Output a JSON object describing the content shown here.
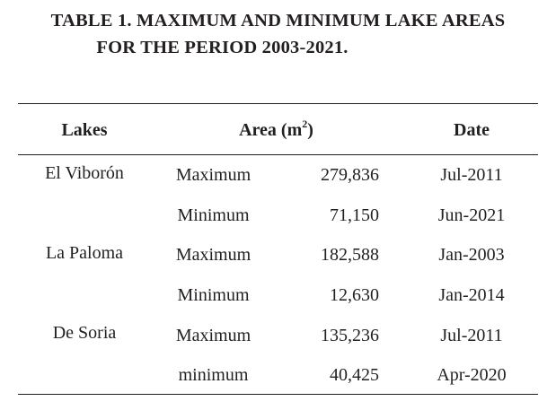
{
  "table": {
    "title_line1": "TABLE 1. MAXIMUM AND MINIMUM LAKE AREAS",
    "title_line2": "FOR THE PERIOD 2003-2021.",
    "header": {
      "lakes": "Lakes",
      "area": "Area (m",
      "area_sup": "2",
      "area_close": ")",
      "date": "Date"
    },
    "lakes": [
      "El Viborón",
      "La Paloma",
      "De Soria"
    ],
    "rows": [
      {
        "kind": "Maximum",
        "area": "279,836",
        "date": "Jul-2011"
      },
      {
        "kind": "Minimum",
        "area": "71,150",
        "date": "Jun-2021"
      },
      {
        "kind": "Maximum",
        "area": "182,588",
        "date": "Jan-2003"
      },
      {
        "kind": "Minimum",
        "area": "12,630",
        "date": "Jan-2014"
      },
      {
        "kind": "Maximum",
        "area": "135,236",
        "date": "Jul-2011"
      },
      {
        "kind": "minimum",
        "area": "40,425",
        "date": "Apr-2020"
      }
    ]
  }
}
